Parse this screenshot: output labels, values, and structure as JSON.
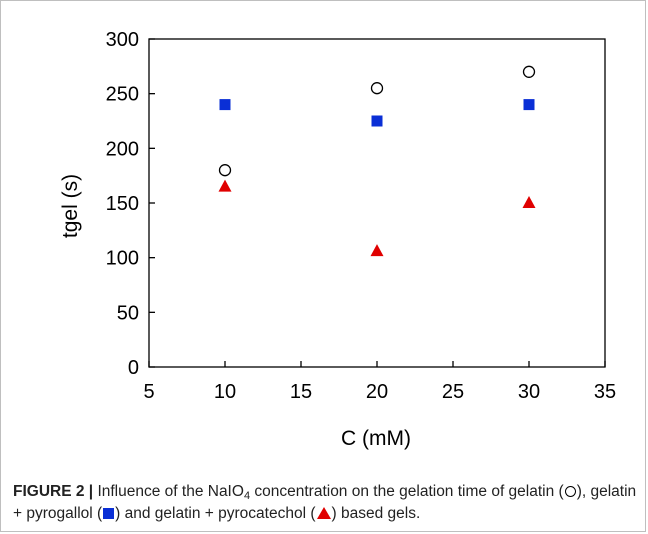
{
  "chart_data": {
    "type": "scatter",
    "title": "",
    "xlabel": "C (mM)",
    "ylabel": "tgel (s)",
    "xlim": [
      5,
      35
    ],
    "ylim": [
      0,
      300
    ],
    "xticks": [
      "5",
      "10",
      "15",
      "20",
      "25",
      "30",
      "35"
    ],
    "yticks": [
      "0",
      "50",
      "100",
      "150",
      "200",
      "250",
      "300"
    ],
    "grid": false,
    "legend": "none",
    "series": [
      {
        "marker": "open-circle",
        "color": "#000000",
        "x": [
          10,
          20,
          30
        ],
        "y": [
          180,
          255,
          270
        ]
      },
      {
        "marker": "filled-square",
        "color": "#0a2fd6",
        "x": [
          10,
          20,
          30
        ],
        "y": [
          240,
          225,
          240
        ]
      },
      {
        "marker": "filled-triangle",
        "color": "#e00000",
        "x": [
          10,
          20,
          30
        ],
        "y": [
          165,
          106,
          150
        ]
      }
    ]
  },
  "caption": {
    "label": "FIGURE 2 |",
    "text_1": " Influence of the NaIO",
    "subscript": "4",
    "text_2": " concentration on the gelation time of gelatin (",
    "text_3": "), gelatin + pyrogallol (",
    "text_4": ") and gelatin + pyrocatechol (",
    "text_5": ") based gels."
  }
}
